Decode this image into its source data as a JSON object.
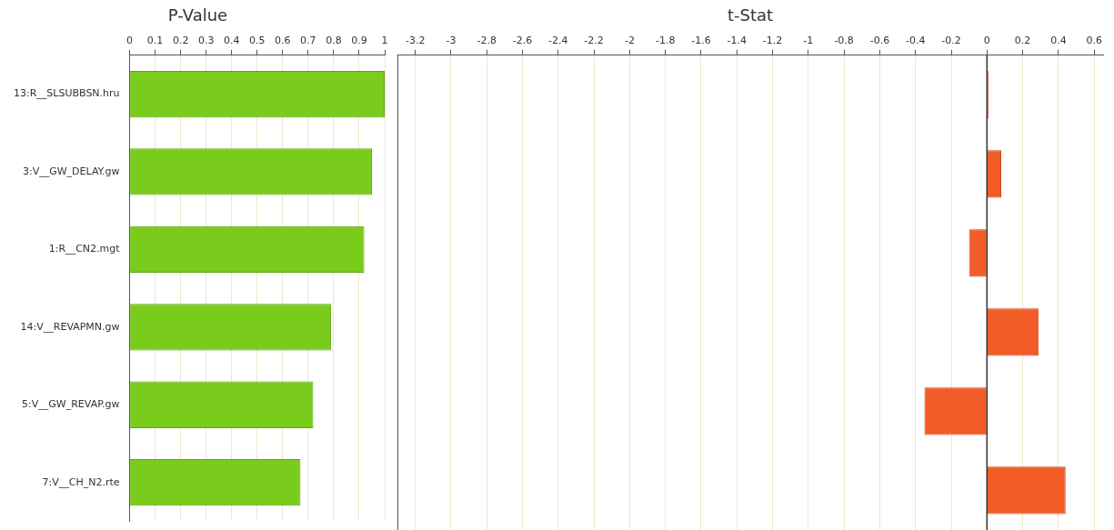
{
  "chart_data": [
    {
      "type": "bar",
      "orientation": "horizontal",
      "title": "P-Value",
      "categories": [
        "13:R__SLSUBBSN.hru",
        "3:V__GW_DELAY.gw",
        "1:R__CN2.mgt",
        "14:V__REVAPMN.gw",
        "5:V__GW_REVAP.gw",
        "7:V__CH_N2.rte"
      ],
      "series": [
        {
          "color": "#7acc1c",
          "values": [
            1.0,
            0.95,
            0.92,
            0.79,
            0.72,
            0.67
          ]
        }
      ],
      "xlim": [
        0,
        1
      ],
      "xticks": [
        0,
        0.1,
        0.2,
        0.3,
        0.4,
        0.5,
        0.6,
        0.7,
        0.8,
        0.9,
        1
      ],
      "grid": "x"
    },
    {
      "type": "bar",
      "orientation": "horizontal",
      "title": "t-Stat",
      "categories": [
        null,
        null,
        null,
        null,
        null,
        null
      ],
      "series": [
        {
          "color": "#f25c26",
          "values": [
            0.01,
            0.08,
            -0.1,
            0.29,
            -0.35,
            0.44
          ]
        }
      ],
      "xlim": [
        -3.3,
        0.65
      ],
      "xticks": [
        -3.2,
        -3,
        -2.8,
        -2.6,
        -2.4,
        -2.2,
        -2,
        -1.8,
        -1.6,
        -1.4,
        -1.2,
        -1,
        -0.8,
        -0.6,
        -0.4,
        -0.2,
        0,
        0.2,
        0.4,
        0.6
      ],
      "grid": "x",
      "tick_labels": "x",
      "ref_lines": [
        {
          "axis": "x",
          "value": 0,
          "color": "#333333"
        }
      ]
    }
  ]
}
